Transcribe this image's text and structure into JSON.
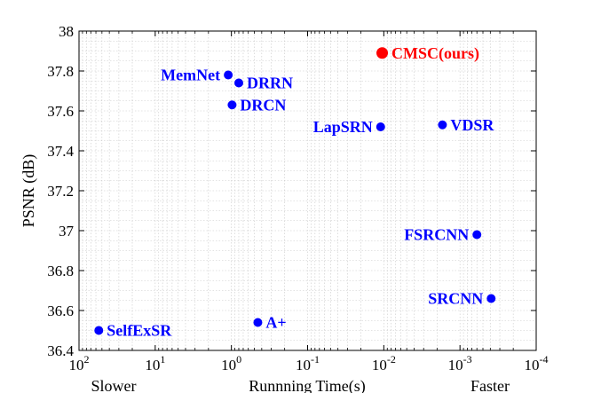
{
  "chart_data": {
    "type": "scatter",
    "title": "",
    "xlabel": "Runnning Time(s)",
    "ylabel": "PSNR (dB)",
    "x_scale": "log",
    "x_reversed": true,
    "xlim": [
      100,
      0.0001
    ],
    "ylim": [
      36.4,
      38
    ],
    "grid": true,
    "x_ticks": [
      {
        "value": 100,
        "base": "10",
        "exp": "2"
      },
      {
        "value": 10,
        "base": "10",
        "exp": "1"
      },
      {
        "value": 1,
        "base": "10",
        "exp": "0"
      },
      {
        "value": 0.1,
        "base": "10",
        "exp": "-1"
      },
      {
        "value": 0.01,
        "base": "10",
        "exp": "-2"
      },
      {
        "value": 0.001,
        "base": "10",
        "exp": "-3"
      },
      {
        "value": 0.0001,
        "base": "10",
        "exp": "-4"
      }
    ],
    "y_ticks": [
      "36.4",
      "36.6",
      "36.8",
      "37",
      "37.2",
      "37.4",
      "37.6",
      "37.8",
      "38"
    ],
    "x_annotations": {
      "left": "Slower",
      "right": "Faster"
    },
    "points": [
      {
        "label": "CMSC(ours)",
        "x": 0.0105,
        "y": 37.89,
        "color": "#ff0000",
        "highlight": true,
        "label_side": "right"
      },
      {
        "label": "MemNet",
        "x": 1.1,
        "y": 37.78,
        "color": "#0000ff",
        "label_side": "left"
      },
      {
        "label": "DRRN",
        "x": 0.8,
        "y": 37.74,
        "color": "#0000ff",
        "label_side": "right"
      },
      {
        "label": "DRCN",
        "x": 0.98,
        "y": 37.63,
        "color": "#0000ff",
        "label_side": "right"
      },
      {
        "label": "LapSRN",
        "x": 0.011,
        "y": 37.52,
        "color": "#0000ff",
        "label_side": "left"
      },
      {
        "label": "VDSR",
        "x": 0.0017,
        "y": 37.53,
        "color": "#0000ff",
        "label_side": "right"
      },
      {
        "label": "FSRCNN",
        "x": 0.0006,
        "y": 36.98,
        "color": "#0000ff",
        "label_side": "left"
      },
      {
        "label": "SRCNN",
        "x": 0.00039,
        "y": 36.66,
        "color": "#0000ff",
        "label_side": "left"
      },
      {
        "label": "SelfExSR",
        "x": 55,
        "y": 36.5,
        "color": "#0000ff",
        "label_side": "right"
      },
      {
        "label": "A+",
        "x": 0.45,
        "y": 36.54,
        "color": "#0000ff",
        "label_side": "right"
      }
    ]
  }
}
